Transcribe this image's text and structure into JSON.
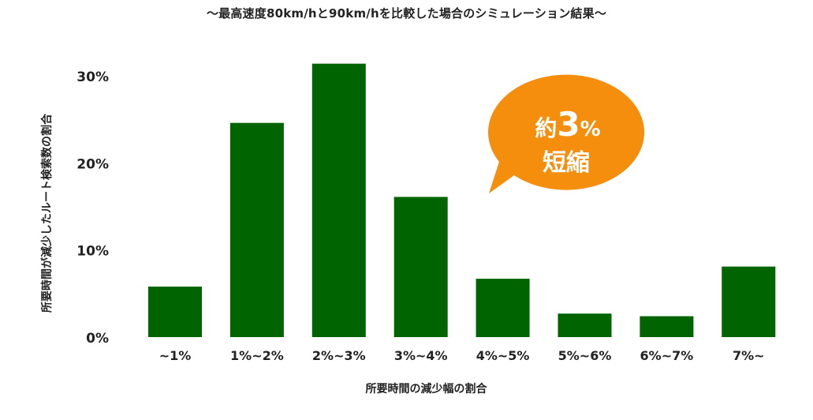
{
  "chart_data": {
    "type": "bar",
    "title": "〜最高速度80km/hと90km/hを比較した場合のシミュレーション結果〜",
    "xlabel": "所要時間の減少幅の割合",
    "ylabel": "所要時間が減少したルート検索数の割合",
    "categories": [
      "~1%",
      "1%~2%",
      "2%~3%",
      "3%~4%",
      "4%~5%",
      "5%~6%",
      "6%~7%",
      "7%~"
    ],
    "values": [
      5.8,
      24.6,
      31.4,
      16.1,
      6.7,
      2.7,
      2.4,
      8.1
    ],
    "ylim": [
      0,
      33
    ],
    "yticks": [
      0,
      10,
      20,
      30
    ],
    "ytick_labels": [
      "0%",
      "10%",
      "20%",
      "30%"
    ],
    "grid": false,
    "bar_color": "#006400",
    "annotation": {
      "line1_prefix": "約",
      "line1_number": "3",
      "line1_unit": "%",
      "line2": "短縮",
      "color": "#f58e0c"
    }
  }
}
